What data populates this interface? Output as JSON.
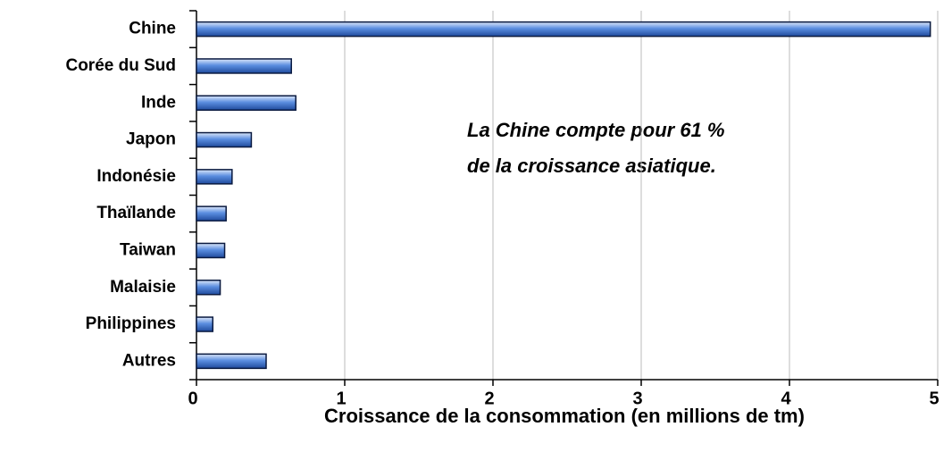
{
  "chart_data": {
    "type": "hbar",
    "x_label": "Croissance de la consommation (en millions de tm)",
    "annotation": [
      "La Chine compte pour 61 %",
      "de la croissance asiatique."
    ],
    "categories": [
      "Chine",
      "Corée du Sud",
      "Inde",
      "Japon",
      "Indonésie",
      "Thaïlande",
      "Taiwan",
      "Malaisie",
      "Philippines",
      "Autres"
    ],
    "values": [
      4.95,
      0.64,
      0.67,
      0.37,
      0.24,
      0.2,
      0.19,
      0.16,
      0.11,
      0.47
    ],
    "color": "#5b8ee0",
    "xlim": [
      0,
      5
    ],
    "xticks": [
      0,
      1,
      2,
      3,
      4,
      5
    ],
    "grid": true
  }
}
